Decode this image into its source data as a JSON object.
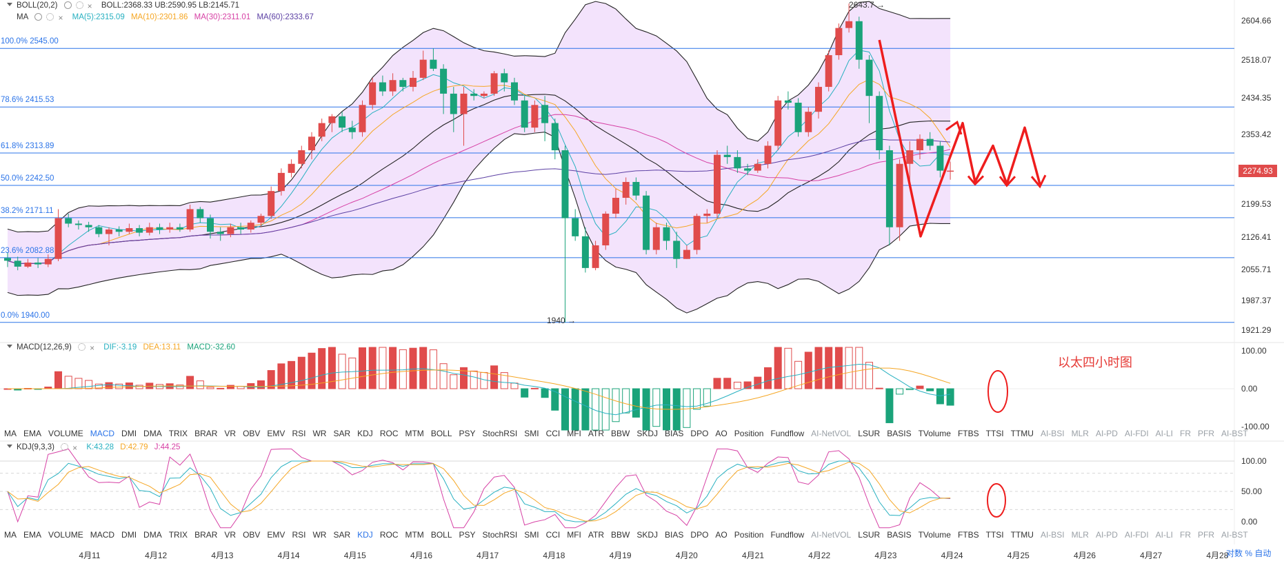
{
  "legend": {
    "boll_name": "BOLL(20,2)",
    "boll_values": "BOLL:2368.33  UB:2590.95  LB:2145.71",
    "ma_name": "MA",
    "ma5": "MA(5):2315.09",
    "ma10": "MA(10):2301.86",
    "ma30": "MA(30):2311.01",
    "ma60": "MA(60):2333.67",
    "macd_name": "MACD(12,26,9)",
    "macd_dif": "DIF:-3.19",
    "macd_dea": "DEA:13.11",
    "macd_macd": "MACD:-32.60",
    "kdj_name": "KDJ(9,3,3)",
    "kdj_k": "K:43.28",
    "kdj_d": "D:42.79",
    "kdj_j": "J:44.25"
  },
  "colors": {
    "up": "#e04b4b",
    "down": "#1aa37a",
    "ma5": "#27b0c0",
    "ma10": "#f5a623",
    "ma30": "#d63fa4",
    "ma60": "#5b3fa3",
    "boll": "#222222",
    "fib": "#2a73e8",
    "band_fill": "#f1defb",
    "dif": "#27b0c0",
    "dea": "#f5a623",
    "kdj_j": "#d63fa4"
  },
  "price_axis": [
    "2604.66",
    "2518.07",
    "2434.35",
    "2353.42",
    "2274.93",
    "2199.53",
    "2126.41",
    "2055.71",
    "1987.37",
    "1921.29"
  ],
  "current_price": "2274.93",
  "fib_levels": [
    {
      "label": "100.0% 2545.00",
      "price": 2545.0
    },
    {
      "label": "78.6% 2415.53",
      "price": 2415.53
    },
    {
      "label": "61.8% 2313.89",
      "price": 2313.89
    },
    {
      "label": "50.0% 2242.50",
      "price": 2242.5
    },
    {
      "label": "38.2% 2171.11",
      "price": 2171.11
    },
    {
      "label": "23.6% 2082.88",
      "price": 2082.88
    },
    {
      "label": "0.0% 1940.00",
      "price": 1940.0
    }
  ],
  "peak_label": "2643.7",
  "low_label": "1940",
  "annotation": "以太四小时图",
  "macd_axis": [
    "100.00",
    "0.00",
    "-100.00"
  ],
  "kdj_axis": [
    "100.00",
    "50.00",
    "0.00"
  ],
  "tabs": [
    "MA",
    "EMA",
    "VOLUME",
    "MACD",
    "DMI",
    "DMA",
    "TRIX",
    "BRAR",
    "VR",
    "OBV",
    "EMV",
    "RSI",
    "WR",
    "SAR",
    "KDJ",
    "ROC",
    "MTM",
    "BOLL",
    "PSY",
    "StochRSI",
    "SMI",
    "CCI",
    "MFI",
    "ATR",
    "BBW",
    "SKDJ",
    "BIAS",
    "DPO",
    "AO",
    "Position",
    "Fundflow",
    "AI-NetVOL",
    "LSUR",
    "BASIS",
    "TVolume",
    "FTBS",
    "TTSI",
    "TTMU",
    "AI-BSI",
    "MLR",
    "AI-PD",
    "AI-FDI",
    "AI-LI",
    "FR",
    "PFR",
    "AI-BST"
  ],
  "dates": [
    "4月11",
    "4月12",
    "4月13",
    "4月14",
    "4月15",
    "4月16",
    "4月17",
    "4月18",
    "4月19",
    "4月20",
    "4月21",
    "4月22",
    "4月23",
    "4月24",
    "4月25",
    "4月26",
    "4月27",
    "4月28"
  ],
  "bottom_right": "对数  %  自动",
  "chart_data": {
    "type": "candlestick",
    "timeframe_note": "4-hour ETH chart",
    "candles": [
      [
        2082,
        2076,
        2095,
        2062
      ],
      [
        2076,
        2063,
        2085,
        2055
      ],
      [
        2063,
        2072,
        2080,
        2060
      ],
      [
        2072,
        2068,
        2082,
        2060
      ],
      [
        2068,
        2080,
        2090,
        2062
      ],
      [
        2080,
        2170,
        2190,
        2075
      ],
      [
        2170,
        2158,
        2180,
        2150
      ],
      [
        2158,
        2155,
        2165,
        2145
      ],
      [
        2155,
        2150,
        2162,
        2140
      ],
      [
        2150,
        2135,
        2155,
        2128
      ],
      [
        2135,
        2145,
        2150,
        2110
      ],
      [
        2145,
        2140,
        2152,
        2130
      ],
      [
        2140,
        2148,
        2158,
        2135
      ],
      [
        2148,
        2138,
        2155,
        2130
      ],
      [
        2138,
        2150,
        2160,
        2132
      ],
      [
        2150,
        2145,
        2158,
        2135
      ],
      [
        2145,
        2150,
        2160,
        2138
      ],
      [
        2150,
        2145,
        2158,
        2140
      ],
      [
        2145,
        2190,
        2200,
        2140
      ],
      [
        2190,
        2170,
        2195,
        2160
      ],
      [
        2170,
        2140,
        2178,
        2125
      ],
      [
        2140,
        2135,
        2150,
        2120
      ],
      [
        2135,
        2150,
        2158,
        2128
      ],
      [
        2150,
        2145,
        2160,
        2135
      ],
      [
        2145,
        2160,
        2165,
        2138
      ],
      [
        2160,
        2175,
        2180,
        2150
      ],
      [
        2175,
        2230,
        2240,
        2168
      ],
      [
        2230,
        2270,
        2280,
        2220
      ],
      [
        2270,
        2290,
        2300,
        2260
      ],
      [
        2290,
        2320,
        2330,
        2280
      ],
      [
        2320,
        2350,
        2360,
        2300
      ],
      [
        2350,
        2380,
        2390,
        2340
      ],
      [
        2380,
        2395,
        2400,
        2360
      ],
      [
        2395,
        2370,
        2405,
        2360
      ],
      [
        2370,
        2360,
        2385,
        2345
      ],
      [
        2360,
        2420,
        2430,
        2350
      ],
      [
        2420,
        2470,
        2480,
        2410
      ],
      [
        2470,
        2450,
        2485,
        2440
      ],
      [
        2450,
        2475,
        2490,
        2440
      ],
      [
        2475,
        2460,
        2480,
        2450
      ],
      [
        2460,
        2480,
        2495,
        2450
      ],
      [
        2480,
        2520,
        2540,
        2475
      ],
      [
        2520,
        2500,
        2545,
        2495
      ],
      [
        2500,
        2445,
        2510,
        2400
      ],
      [
        2445,
        2400,
        2460,
        2360
      ],
      [
        2400,
        2445,
        2460,
        2330
      ],
      [
        2445,
        2440,
        2455,
        2430
      ],
      [
        2440,
        2445,
        2450,
        2435
      ],
      [
        2445,
        2490,
        2495,
        2440
      ],
      [
        2490,
        2470,
        2500,
        2450
      ],
      [
        2470,
        2430,
        2480,
        2420
      ],
      [
        2430,
        2370,
        2440,
        2360
      ],
      [
        2370,
        2420,
        2430,
        2360
      ],
      [
        2420,
        2380,
        2440,
        2340
      ],
      [
        2380,
        2320,
        2390,
        2300
      ],
      [
        2320,
        2170,
        2330,
        1940
      ],
      [
        2170,
        2130,
        2190,
        2120
      ],
      [
        2130,
        2060,
        2150,
        2050
      ],
      [
        2060,
        2110,
        2120,
        2055
      ],
      [
        2110,
        2180,
        2185,
        2100
      ],
      [
        2180,
        2215,
        2235,
        2170
      ],
      [
        2215,
        2250,
        2260,
        2200
      ],
      [
        2250,
        2220,
        2260,
        2210
      ],
      [
        2220,
        2100,
        2230,
        2090
      ],
      [
        2100,
        2150,
        2160,
        2090
      ],
      [
        2150,
        2120,
        2160,
        2100
      ],
      [
        2120,
        2080,
        2140,
        2060
      ],
      [
        2080,
        2100,
        2110,
        2080
      ],
      [
        2100,
        2175,
        2180,
        2090
      ],
      [
        2175,
        2180,
        2190,
        2160
      ],
      [
        2180,
        2310,
        2320,
        2170
      ],
      [
        2310,
        2305,
        2330,
        2290
      ],
      [
        2305,
        2280,
        2320,
        2270
      ],
      [
        2280,
        2275,
        2290,
        2265
      ],
      [
        2275,
        2290,
        2300,
        2270
      ],
      [
        2290,
        2330,
        2340,
        2280
      ],
      [
        2330,
        2430,
        2440,
        2320
      ],
      [
        2430,
        2425,
        2450,
        2410
      ],
      [
        2425,
        2360,
        2435,
        2350
      ],
      [
        2360,
        2405,
        2415,
        2350
      ],
      [
        2405,
        2460,
        2470,
        2390
      ],
      [
        2460,
        2530,
        2540,
        2450
      ],
      [
        2530,
        2590,
        2600,
        2520
      ],
      [
        2590,
        2605,
        2644,
        2580
      ],
      [
        2605,
        2520,
        2615,
        2500
      ],
      [
        2520,
        2440,
        2530,
        2380
      ],
      [
        2440,
        2320,
        2450,
        2300
      ],
      [
        2320,
        2150,
        2330,
        2110
      ],
      [
        2150,
        2290,
        2300,
        2120
      ],
      [
        2290,
        2320,
        2340,
        2240
      ],
      [
        2320,
        2345,
        2355,
        2300
      ],
      [
        2345,
        2330,
        2360,
        2320
      ],
      [
        2330,
        2275,
        2340,
        2260
      ],
      [
        2275,
        2275,
        2295,
        2255
      ]
    ],
    "bollinger": {
      "middle": 2368.33,
      "upper": 2590.95,
      "lower": 2145.71
    },
    "moving_averages": {
      "MA5": 2315.09,
      "MA10": 2301.86,
      "MA30": 2311.01,
      "MA60": 2333.67
    },
    "macd": {
      "dif": -3.19,
      "dea": 13.11,
      "macd": -32.6,
      "ylim": [
        -100,
        100
      ]
    },
    "kdj": {
      "k": 43.28,
      "d": 42.79,
      "j": 44.25,
      "ylim": [
        0,
        100
      ]
    },
    "ylim_price": [
      1921.29,
      2650
    ]
  }
}
